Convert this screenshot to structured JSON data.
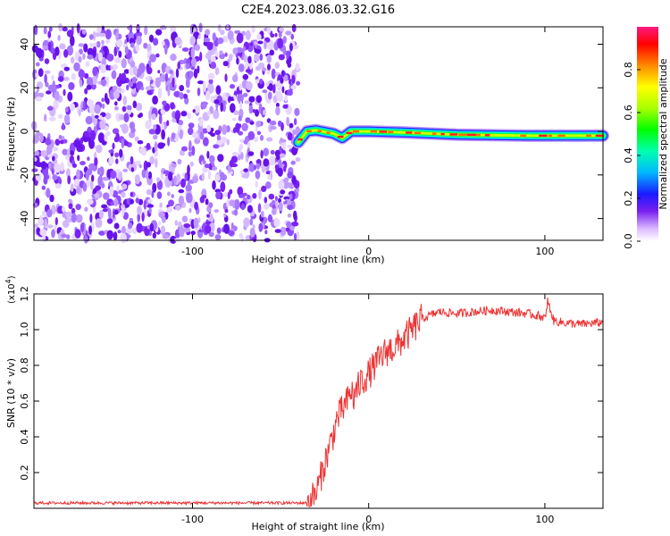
{
  "title": "C2E4.2023.086.03.32.G16",
  "spectrogram": {
    "xlabel": "Height of straight line (km)",
    "ylabel": "Frequency (Hz)",
    "xlim": [
      -190,
      133
    ],
    "ylim": [
      -50,
      48
    ],
    "xticks": [
      -100,
      0,
      100
    ],
    "xtick_labels": [
      "-100",
      "0",
      "100"
    ],
    "yticks": [
      -40,
      -20,
      0,
      20,
      40
    ],
    "ytick_labels": [
      "-40",
      "-20",
      "0",
      "20",
      "40"
    ],
    "noise_region_x": [
      -190,
      -40
    ],
    "signal_track": [
      {
        "x": -40,
        "f": -5
      },
      {
        "x": -35,
        "f": 0
      },
      {
        "x": -30,
        "f": 0.5
      },
      {
        "x": -20,
        "f": -1
      },
      {
        "x": -15,
        "f": -3
      },
      {
        "x": -10,
        "f": 0
      },
      {
        "x": 0,
        "f": 0
      },
      {
        "x": 20,
        "f": -0.5
      },
      {
        "x": 50,
        "f": -1.5
      },
      {
        "x": 90,
        "f": -2
      },
      {
        "x": 133,
        "f": -2
      }
    ]
  },
  "colorbar": {
    "label": "Normalized spectral amplitude",
    "lim": [
      0,
      1
    ],
    "ticks": [
      0.0,
      0.2,
      0.4,
      0.6,
      0.8
    ],
    "tick_labels": [
      "0.0",
      "0.2",
      "0.4",
      "0.6",
      "0.8"
    ]
  },
  "chart_data": {
    "type": "line",
    "xlabel": "Height of straight line (km)",
    "ylabel": "SNR (10 * v/v)",
    "y_multiplier_label": "(x10",
    "y_multiplier_exp": "4",
    "y_multiplier_close": ")",
    "xlim": [
      -190,
      133
    ],
    "ylim": [
      0,
      1.2
    ],
    "xticks": [
      -100,
      0,
      100
    ],
    "xtick_labels": [
      "-100",
      "0",
      "100"
    ],
    "yticks": [
      0.2,
      0.4,
      0.6,
      0.8,
      1.0,
      1.2
    ],
    "ytick_labels": [
      "0.2",
      "0.4",
      "0.6",
      "0.8",
      "1.0",
      "1.2"
    ],
    "color": "#ee3333",
    "series": [
      {
        "x": [
          -190,
          -150,
          -100,
          -60,
          -35,
          -30,
          -28,
          -25,
          -22,
          -20,
          -18,
          -15,
          -12,
          -10,
          -8,
          -5,
          0,
          5,
          10,
          15,
          20,
          25,
          30,
          35,
          40,
          50,
          60,
          70,
          80,
          90,
          95,
          100,
          102,
          105,
          110,
          120,
          133
        ],
        "y": [
          0.03,
          0.03,
          0.03,
          0.03,
          0.03,
          0.08,
          0.15,
          0.25,
          0.35,
          0.42,
          0.5,
          0.55,
          0.6,
          0.65,
          0.62,
          0.7,
          0.75,
          0.82,
          0.88,
          0.9,
          0.95,
          1.0,
          1.06,
          1.08,
          1.1,
          1.09,
          1.1,
          1.11,
          1.1,
          1.09,
          1.08,
          1.07,
          1.15,
          1.05,
          1.04,
          1.03,
          1.04
        ]
      }
    ]
  }
}
